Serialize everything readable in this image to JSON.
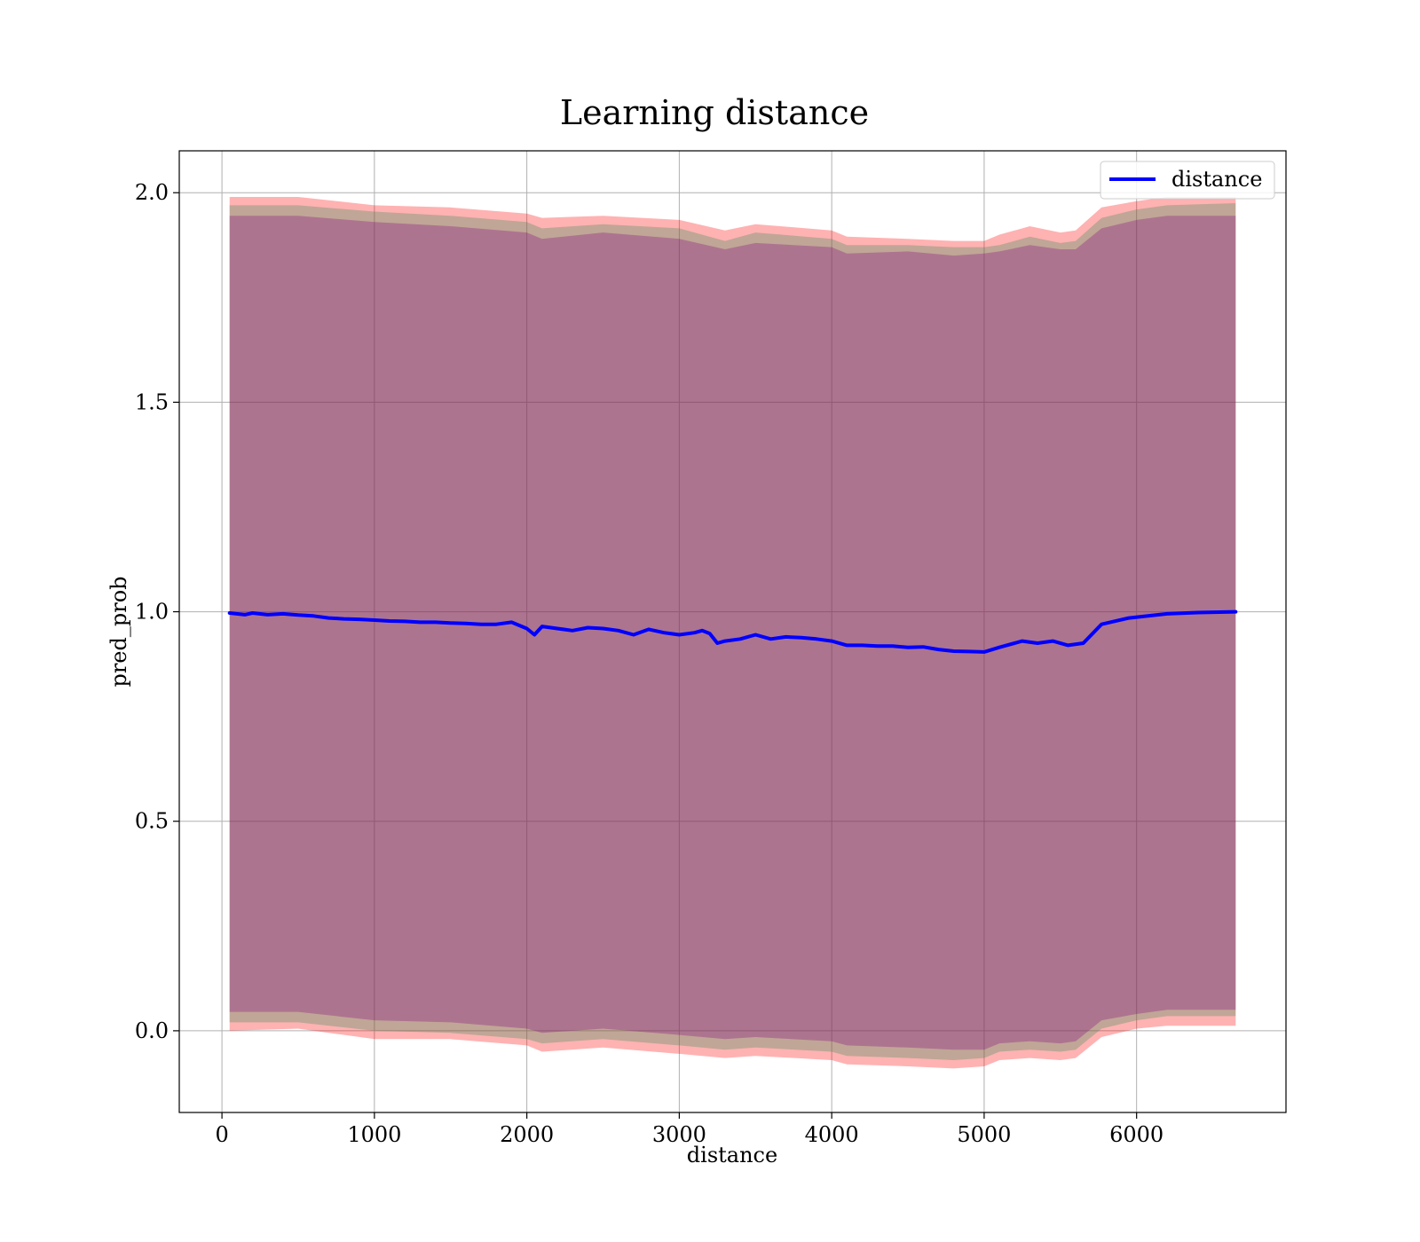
{
  "chart_data": {
    "type": "line",
    "title": "Learning distance",
    "xlabel": "distance",
    "ylabel": "pred_prob",
    "xlim": [
      -280,
      6980
    ],
    "ylim": [
      -0.195,
      2.1
    ],
    "x_ticks": [
      0,
      1000,
      2000,
      3000,
      4000,
      5000,
      6000
    ],
    "x_tick_labels": [
      "0",
      "1000",
      "2000",
      "3000",
      "4000",
      "5000",
      "6000"
    ],
    "y_ticks": [
      0.0,
      0.5,
      1.0,
      1.5,
      2.0
    ],
    "y_tick_labels": [
      "0.0",
      "0.5",
      "1.0",
      "1.5",
      "2.0"
    ],
    "grid": true,
    "legend_position": "top-right",
    "series": [
      {
        "name": "distance",
        "color": "#0000ff",
        "x": [
          50,
          150,
          200,
          300,
          400,
          500,
          600,
          700,
          800,
          900,
          1000,
          1100,
          1200,
          1300,
          1400,
          1500,
          1600,
          1700,
          1800,
          1900,
          2000,
          2050,
          2100,
          2200,
          2300,
          2400,
          2500,
          2600,
          2700,
          2800,
          2900,
          3000,
          3100,
          3150,
          3200,
          3250,
          3300,
          3400,
          3500,
          3600,
          3700,
          3800,
          3900,
          4000,
          4100,
          4200,
          4300,
          4400,
          4500,
          4600,
          4700,
          4800,
          4900,
          5000,
          5100,
          5250,
          5350,
          5450,
          5550,
          5650,
          5770,
          5950,
          6200,
          6400,
          6650
        ],
        "y": [
          0.997,
          0.993,
          0.997,
          0.993,
          0.995,
          0.992,
          0.99,
          0.985,
          0.983,
          0.982,
          0.98,
          0.978,
          0.977,
          0.975,
          0.975,
          0.973,
          0.972,
          0.97,
          0.97,
          0.975,
          0.96,
          0.945,
          0.965,
          0.96,
          0.955,
          0.962,
          0.96,
          0.955,
          0.945,
          0.958,
          0.95,
          0.945,
          0.95,
          0.955,
          0.948,
          0.925,
          0.93,
          0.935,
          0.945,
          0.935,
          0.94,
          0.938,
          0.935,
          0.93,
          0.92,
          0.92,
          0.918,
          0.918,
          0.915,
          0.916,
          0.91,
          0.906,
          0.905,
          0.904,
          0.915,
          0.93,
          0.925,
          0.93,
          0.92,
          0.925,
          0.97,
          0.985,
          0.995,
          0.998,
          1.0
        ]
      }
    ],
    "bands": [
      {
        "color": "#ff0000",
        "opacity": 0.3,
        "x": [
          50,
          500,
          1000,
          1500,
          2000,
          2100,
          2500,
          3000,
          3300,
          3500,
          4000,
          4100,
          4500,
          4800,
          5000,
          5100,
          5300,
          5500,
          5600,
          5770,
          6000,
          6200,
          6650
        ],
        "upper": [
          1.99,
          1.99,
          1.97,
          1.965,
          1.95,
          1.94,
          1.945,
          1.935,
          1.91,
          1.925,
          1.91,
          1.895,
          1.89,
          1.885,
          1.885,
          1.9,
          1.92,
          1.905,
          1.91,
          1.965,
          1.98,
          1.99,
          1.99
        ],
        "lower": [
          0.0,
          0.005,
          -0.02,
          -0.02,
          -0.035,
          -0.05,
          -0.04,
          -0.055,
          -0.065,
          -0.06,
          -0.07,
          -0.08,
          -0.085,
          -0.09,
          -0.085,
          -0.07,
          -0.065,
          -0.07,
          -0.065,
          -0.015,
          0.005,
          0.012,
          0.012
        ]
      },
      {
        "color": "#2e8b57",
        "opacity": 0.3,
        "x": [
          50,
          500,
          1000,
          1500,
          2000,
          2100,
          2500,
          3000,
          3300,
          3500,
          4000,
          4100,
          4500,
          4800,
          5000,
          5100,
          5300,
          5500,
          5600,
          5770,
          6000,
          6200,
          6650
        ],
        "upper": [
          1.97,
          1.97,
          1.955,
          1.945,
          1.93,
          1.915,
          1.925,
          1.915,
          1.885,
          1.905,
          1.89,
          1.875,
          1.875,
          1.87,
          1.87,
          1.875,
          1.895,
          1.88,
          1.885,
          1.94,
          1.96,
          1.97,
          1.975
        ],
        "lower": [
          0.02,
          0.02,
          0.0,
          -0.005,
          -0.02,
          -0.03,
          -0.02,
          -0.035,
          -0.045,
          -0.04,
          -0.05,
          -0.06,
          -0.065,
          -0.07,
          -0.065,
          -0.05,
          -0.045,
          -0.05,
          -0.045,
          0.005,
          0.025,
          0.035,
          0.035
        ]
      },
      {
        "color": "#800080",
        "opacity": 0.3,
        "x": [
          50,
          500,
          1000,
          1500,
          2000,
          2100,
          2500,
          3000,
          3300,
          3500,
          4000,
          4100,
          4500,
          4800,
          5000,
          5100,
          5300,
          5500,
          5600,
          5770,
          6000,
          6200,
          6650
        ],
        "upper": [
          1.945,
          1.945,
          1.93,
          1.92,
          1.905,
          1.89,
          1.905,
          1.89,
          1.865,
          1.88,
          1.87,
          1.855,
          1.86,
          1.85,
          1.855,
          1.86,
          1.875,
          1.865,
          1.865,
          1.915,
          1.935,
          1.945,
          1.945
        ],
        "lower": [
          0.045,
          0.045,
          0.025,
          0.02,
          0.005,
          -0.005,
          0.005,
          -0.01,
          -0.02,
          -0.015,
          -0.025,
          -0.035,
          -0.04,
          -0.045,
          -0.045,
          -0.03,
          -0.025,
          -0.03,
          -0.025,
          0.025,
          0.04,
          0.05,
          0.05
        ]
      }
    ]
  }
}
